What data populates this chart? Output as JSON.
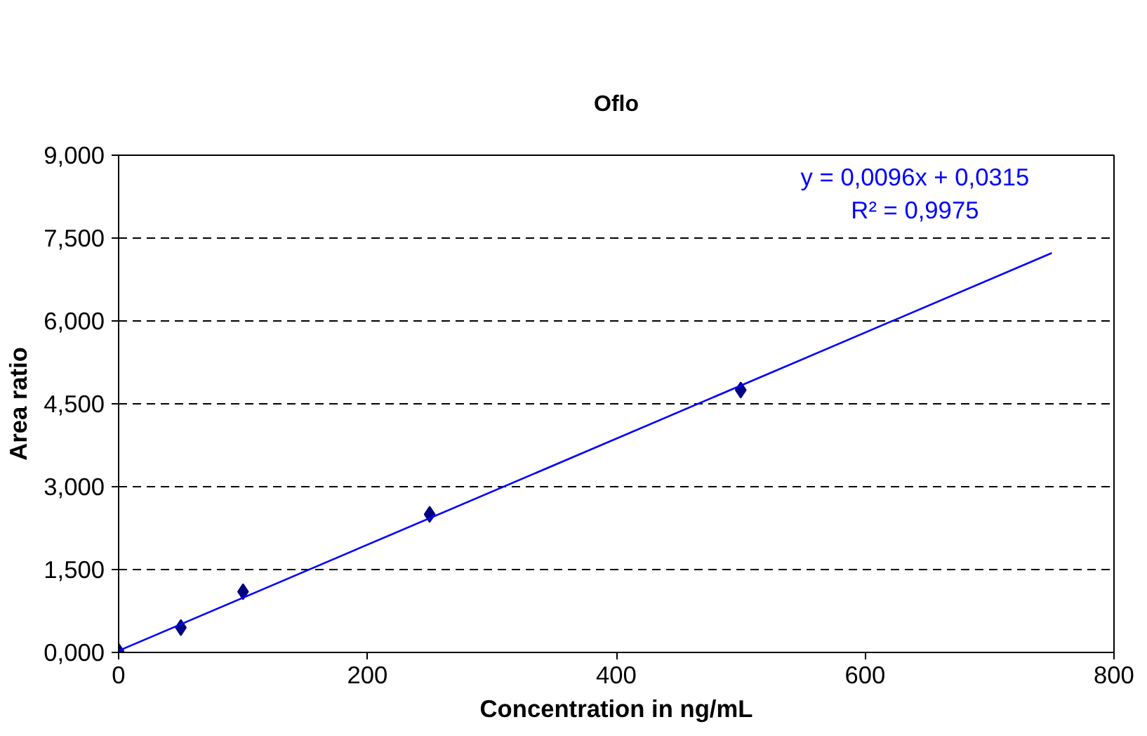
{
  "chart_data": {
    "type": "scatter",
    "title": "Oflo",
    "xlabel": "Concentration in ng/mL",
    "ylabel": "Area ratio",
    "series": [
      {
        "color": "#000080",
        "x": [
          0,
          50,
          100,
          250,
          500
        ],
        "values": [
          0.02,
          0.45,
          1.1,
          2.5,
          4.75
        ],
        "marker": "diamond"
      },
      {
        "type": "line",
        "color": "#0000ff",
        "x": [
          0,
          750
        ],
        "values": [
          0.03,
          7.23
        ],
        "marker": "none",
        "line_style": "solid"
      }
    ],
    "xlim": [
      0,
      800
    ],
    "xticks": [
      0,
      200,
      400,
      600,
      800
    ],
    "ylim": [
      0,
      9
    ],
    "yticks": [
      {
        "value": 0,
        "label": "0,000"
      },
      {
        "value": 1.5,
        "label": "1,500"
      },
      {
        "value": 3,
        "label": "3,000"
      },
      {
        "value": 4.5,
        "label": "4,500"
      },
      {
        "value": 6,
        "label": "6,000"
      },
      {
        "value": 7.5,
        "label": "7,500"
      },
      {
        "value": 9,
        "label": "9,000"
      }
    ],
    "grid": "y",
    "annotations": [
      "y = 0,0096x + 0,0315",
      "R² = 0,9975"
    ]
  }
}
